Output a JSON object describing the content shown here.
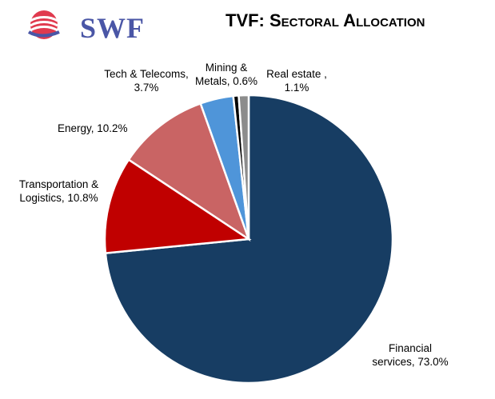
{
  "logo": {
    "text": "SWF",
    "accent_color": "#e03a4e",
    "text_color": "#4a56a6"
  },
  "title": "TVF: Sectoral Allocation",
  "chart_data": {
    "type": "pie",
    "title": "TVF: Sectoral Allocation",
    "slices": [
      {
        "label": "Financial services",
        "value": 73.0,
        "display": "Financial services, 73.0%",
        "color": "#173d63"
      },
      {
        "label": "Transportation & Logistics",
        "value": 10.8,
        "display": "Transportation & Logistics, 10.8%",
        "color": "#c00000"
      },
      {
        "label": "Energy",
        "value": 10.2,
        "display": "Energy, 10.2%",
        "color": "#c96464"
      },
      {
        "label": "Tech & Telecoms",
        "value": 3.7,
        "display": "Tech & Telecoms, 3.7%",
        "color": "#4f95d9"
      },
      {
        "label": "Mining & Metals",
        "value": 0.6,
        "display": "Mining & Metals, 0.6%",
        "color": "#000000"
      },
      {
        "label": "Real estate",
        "value": 1.1,
        "display": "Real estate , 1.1%",
        "color": "#8c8c8c"
      }
    ],
    "legend": "none",
    "start": "12 o'clock",
    "direction": "clockwise"
  }
}
